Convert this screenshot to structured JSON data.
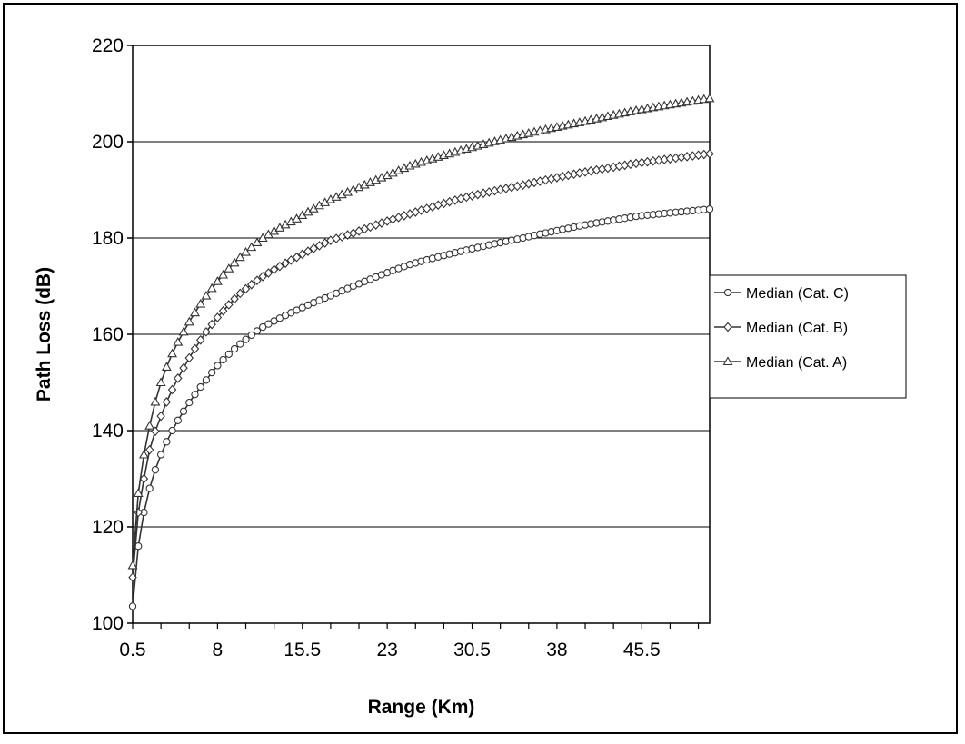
{
  "chart_data": {
    "type": "line",
    "title": "",
    "xlabel": "Range (Km)",
    "ylabel": "Path Loss (dB)",
    "xlim": [
      0.5,
      51.5
    ],
    "ylim": [
      100,
      220
    ],
    "yticks": [
      100,
      120,
      140,
      160,
      180,
      200,
      220
    ],
    "xticks": [
      0.5,
      8,
      15.5,
      23,
      30.5,
      38,
      45.5
    ],
    "x_step": 0.5,
    "grid": "horizontal",
    "legend_position": "right",
    "series": [
      {
        "name": "Median (Cat. C)",
        "marker": "circle",
        "x": [
          0.5,
          1,
          1.5,
          2,
          3,
          4,
          5,
          6,
          7,
          8,
          10,
          12,
          15,
          18,
          20,
          23,
          25,
          30,
          35,
          40,
          45,
          51.5
        ],
        "y": [
          103.5,
          116,
          123,
          128,
          135,
          140,
          144,
          147.5,
          150.5,
          153.5,
          158,
          161.5,
          165,
          168,
          170,
          172.8,
          174.5,
          177.5,
          180,
          182.5,
          184.5,
          186
        ]
      },
      {
        "name": "Median (Cat. B)",
        "marker": "diamond",
        "x": [
          0.5,
          1,
          1.5,
          2,
          3,
          4,
          5,
          6,
          7,
          8,
          10,
          12,
          15,
          18,
          20,
          23,
          25,
          30,
          35,
          40,
          45,
          51.5
        ],
        "y": [
          109.5,
          123,
          130,
          136,
          143,
          148.5,
          153,
          157,
          160.5,
          163.5,
          168.5,
          172,
          176,
          179.5,
          181,
          183.5,
          185,
          188.5,
          191,
          193.5,
          195.5,
          197.5
        ]
      },
      {
        "name": "Median (Cat. A)",
        "marker": "triangle",
        "x": [
          0.5,
          1,
          1.5,
          2,
          3,
          4,
          5,
          6,
          7,
          8,
          10,
          12,
          15,
          18,
          20,
          23,
          25,
          30,
          35,
          40,
          45,
          51.5
        ],
        "y": [
          112,
          127,
          135,
          141,
          150,
          156,
          160.5,
          164.5,
          168,
          171,
          176,
          180,
          184,
          188,
          190,
          193,
          195,
          198.5,
          201.5,
          204,
          206.5,
          209
        ]
      }
    ]
  }
}
